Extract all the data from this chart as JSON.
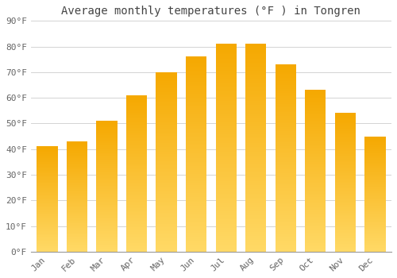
{
  "title": "Average monthly temperatures (°F ) in Tongren",
  "months": [
    "Jan",
    "Feb",
    "Mar",
    "Apr",
    "May",
    "Jun",
    "Jul",
    "Aug",
    "Sep",
    "Oct",
    "Nov",
    "Dec"
  ],
  "values": [
    41,
    43,
    51,
    61,
    70,
    76,
    81,
    81,
    73,
    63,
    54,
    45
  ],
  "ylim": [
    0,
    90
  ],
  "yticks": [
    0,
    10,
    20,
    30,
    40,
    50,
    60,
    70,
    80,
    90
  ],
  "ytick_labels": [
    "0°F",
    "10°F",
    "20°F",
    "30°F",
    "40°F",
    "50°F",
    "60°F",
    "70°F",
    "80°F",
    "90°F"
  ],
  "bar_color_top": "#F5A800",
  "bar_color_bottom": "#FFD966",
  "background_color": "#FFFFFF",
  "plot_bg_color": "#FFFFFF",
  "grid_color": "#CCCCCC",
  "title_fontsize": 10,
  "tick_fontsize": 8,
  "title_color": "#444444",
  "tick_color": "#666666",
  "bar_width": 0.7
}
